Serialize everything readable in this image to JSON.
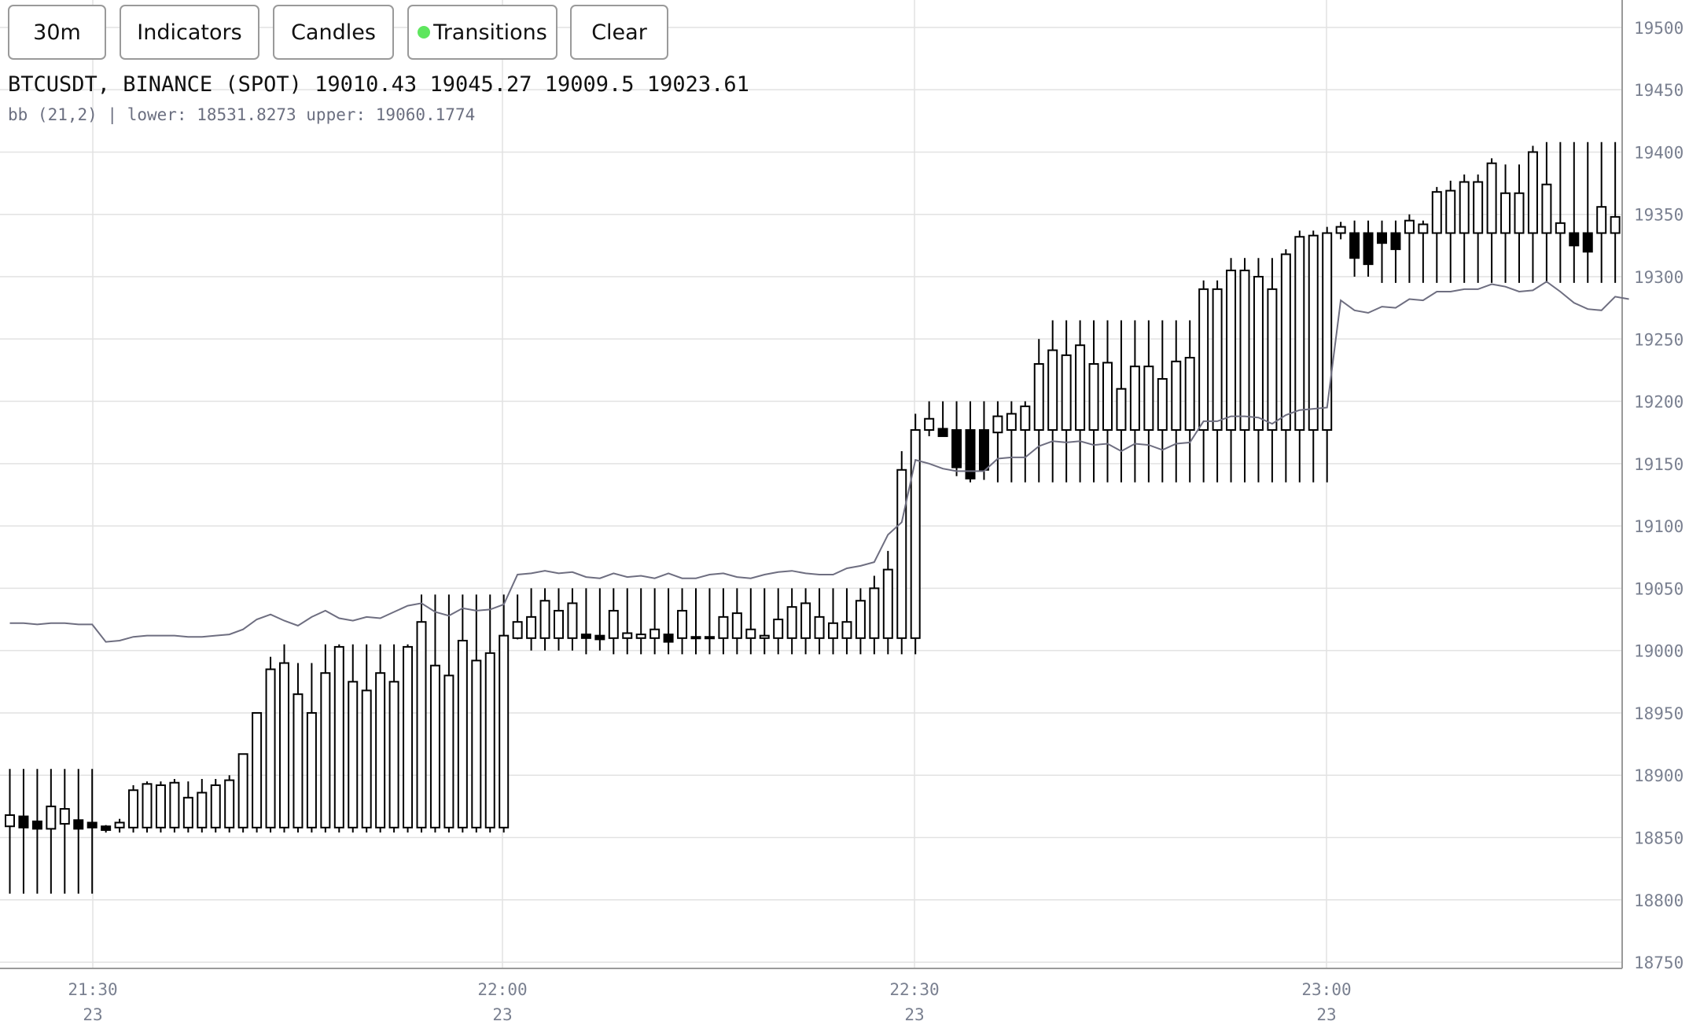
{
  "toolbar": {
    "interval_label": "30m",
    "indicators_label": "Indicators",
    "candles_label": "Candles",
    "transitions_label": "Transitions",
    "transitions_dot_color": "#5ee65e",
    "clear_label": "Clear"
  },
  "legend": {
    "symbol": "BTCUSDT, BINANCE (SPOT)",
    "open": "19010.43",
    "high": "19045.27",
    "low": "19009.5",
    "close": "19023.61",
    "indicator": "bb (21,2) | lower: 18531.8273 upper: 19060.1774"
  },
  "chart_data": {
    "type": "candlestick",
    "y_ticks": [
      "19500",
      "19450",
      "19400",
      "19350",
      "19300",
      "19250",
      "19200",
      "19150",
      "19100",
      "19050",
      "19000",
      "18950",
      "18900",
      "18850",
      "18800",
      "18750"
    ],
    "ylim": [
      18745,
      19522
    ],
    "x_ticks": [
      {
        "time": "21:30",
        "day": "23"
      },
      {
        "time": "22:00",
        "day": "23"
      },
      {
        "time": "22:30",
        "day": "23"
      },
      {
        "time": "23:00",
        "day": "23"
      }
    ],
    "grid": true,
    "colors": {
      "up": "#ffffff",
      "down": "#000000",
      "outline": "#000000",
      "line": "#6e6e80",
      "grid": "#e2e2e2"
    },
    "candles": [
      [
        18859,
        18905,
        18805,
        18868
      ],
      [
        18867,
        18905,
        18805,
        18858
      ],
      [
        18863,
        18905,
        18805,
        18857
      ],
      [
        18857,
        18905,
        18805,
        18875
      ],
      [
        18861,
        18905,
        18805,
        18873
      ],
      [
        18864,
        18905,
        18805,
        18857
      ],
      [
        18862,
        18905,
        18805,
        18858
      ],
      [
        18859,
        18860,
        18854,
        18856
      ],
      [
        18858,
        18865,
        18854,
        18862
      ],
      [
        18858,
        18892,
        18854,
        18888
      ],
      [
        18858,
        18895,
        18854,
        18893
      ],
      [
        18858,
        18895,
        18854,
        18892
      ],
      [
        18858,
        18897,
        18854,
        18894
      ],
      [
        18858,
        18895,
        18854,
        18882
      ],
      [
        18858,
        18897,
        18854,
        18886
      ],
      [
        18858,
        18897,
        18854,
        18892
      ],
      [
        18858,
        18900,
        18854,
        18896
      ],
      [
        18858,
        18917,
        18854,
        18917
      ],
      [
        18858,
        18950,
        18854,
        18950
      ],
      [
        18858,
        18995,
        18854,
        18985
      ],
      [
        18858,
        19005,
        18854,
        18990
      ],
      [
        18858,
        18990,
        18854,
        18965
      ],
      [
        18858,
        18990,
        18854,
        18950
      ],
      [
        18858,
        19005,
        18854,
        18982
      ],
      [
        18858,
        19005,
        18854,
        19003
      ],
      [
        18858,
        19005,
        18854,
        18975
      ],
      [
        18858,
        19005,
        18854,
        18968
      ],
      [
        18858,
        19005,
        18854,
        18982
      ],
      [
        18858,
        19005,
        18854,
        18975
      ],
      [
        18858,
        19005,
        18854,
        19003
      ],
      [
        18858,
        19045,
        18854,
        19023
      ],
      [
        18858,
        19045,
        18854,
        18988
      ],
      [
        18858,
        19045,
        18854,
        18980
      ],
      [
        18858,
        19045,
        18854,
        19008
      ],
      [
        18858,
        19045,
        18854,
        18992
      ],
      [
        18858,
        19045,
        18854,
        18998
      ],
      [
        18858,
        19045,
        18854,
        19012
      ],
      [
        19010,
        19045,
        19009,
        19023
      ],
      [
        19010,
        19050,
        19000,
        19027
      ],
      [
        19010,
        19050,
        19000,
        19040
      ],
      [
        19010,
        19050,
        19000,
        19032
      ],
      [
        19010,
        19050,
        19000,
        19038
      ],
      [
        19013,
        19050,
        18997,
        19010
      ],
      [
        19012,
        19050,
        19000,
        19009
      ],
      [
        19010,
        19050,
        18997,
        19032
      ],
      [
        19010,
        19050,
        18997,
        19014
      ],
      [
        19010,
        19050,
        18997,
        19013
      ],
      [
        19010,
        19050,
        18997,
        19017
      ],
      [
        19013,
        19050,
        18997,
        19007
      ],
      [
        19010,
        19050,
        18997,
        19032
      ],
      [
        19011,
        19050,
        18997,
        19010
      ],
      [
        19010,
        19050,
        18997,
        19011
      ],
      [
        19010,
        19050,
        18997,
        19027
      ],
      [
        19010,
        19050,
        18997,
        19030
      ],
      [
        19010,
        19050,
        18997,
        19017
      ],
      [
        19010,
        19050,
        18997,
        19012
      ],
      [
        19010,
        19050,
        18997,
        19025
      ],
      [
        19010,
        19050,
        18997,
        19035
      ],
      [
        19010,
        19050,
        18997,
        19038
      ],
      [
        19010,
        19050,
        18997,
        19027
      ],
      [
        19010,
        19050,
        18997,
        19022
      ],
      [
        19010,
        19050,
        18997,
        19023
      ],
      [
        19010,
        19050,
        18997,
        19040
      ],
      [
        19010,
        19060,
        18997,
        19050
      ],
      [
        19010,
        19080,
        18997,
        19065
      ],
      [
        19010,
        19160,
        18997,
        19145
      ],
      [
        19010,
        19190,
        18997,
        19177
      ],
      [
        19177,
        19200,
        19172,
        19186
      ],
      [
        19178,
        19200,
        19173,
        19172
      ],
      [
        19177,
        19200,
        19140,
        19147
      ],
      [
        19177,
        19200,
        19135,
        19138
      ],
      [
        19177,
        19200,
        19137,
        19145
      ],
      [
        19175,
        19200,
        19135,
        19188
      ],
      [
        19177,
        19200,
        19135,
        19190
      ],
      [
        19177,
        19200,
        19135,
        19196
      ],
      [
        19177,
        19250,
        19135,
        19230
      ],
      [
        19177,
        19265,
        19135,
        19241
      ],
      [
        19177,
        19265,
        19135,
        19237
      ],
      [
        19177,
        19265,
        19135,
        19245
      ],
      [
        19177,
        19265,
        19135,
        19230
      ],
      [
        19177,
        19265,
        19135,
        19231
      ],
      [
        19177,
        19265,
        19135,
        19210
      ],
      [
        19177,
        19265,
        19135,
        19228
      ],
      [
        19177,
        19265,
        19135,
        19228
      ],
      [
        19177,
        19265,
        19135,
        19218
      ],
      [
        19177,
        19265,
        19135,
        19232
      ],
      [
        19177,
        19265,
        19135,
        19235
      ],
      [
        19177,
        19297,
        19135,
        19290
      ],
      [
        19177,
        19297,
        19135,
        19290
      ],
      [
        19177,
        19315,
        19135,
        19305
      ],
      [
        19177,
        19315,
        19135,
        19305
      ],
      [
        19177,
        19315,
        19135,
        19300
      ],
      [
        19177,
        19315,
        19135,
        19290
      ],
      [
        19177,
        19322,
        19135,
        19318
      ],
      [
        19177,
        19337,
        19135,
        19332
      ],
      [
        19177,
        19337,
        19135,
        19333
      ],
      [
        19177,
        19340,
        19135,
        19335
      ],
      [
        19335,
        19344,
        19330,
        19340
      ],
      [
        19335,
        19345,
        19300,
        19315
      ],
      [
        19335,
        19345,
        19300,
        19310
      ],
      [
        19335,
        19345,
        19295,
        19327
      ],
      [
        19335,
        19345,
        19295,
        19322
      ],
      [
        19335,
        19350,
        19295,
        19345
      ],
      [
        19335,
        19345,
        19295,
        19342
      ],
      [
        19335,
        19372,
        19295,
        19368
      ],
      [
        19335,
        19377,
        19295,
        19369
      ],
      [
        19335,
        19382,
        19295,
        19376
      ],
      [
        19335,
        19382,
        19295,
        19376
      ],
      [
        19335,
        19395,
        19295,
        19391
      ],
      [
        19335,
        19390,
        19295,
        19367
      ],
      [
        19335,
        19390,
        19295,
        19367
      ],
      [
        19335,
        19405,
        19295,
        19400
      ],
      [
        19335,
        19408,
        19295,
        19374
      ],
      [
        19335,
        19408,
        19295,
        19343
      ],
      [
        19335,
        19408,
        19295,
        19325
      ],
      [
        19335,
        19408,
        19295,
        19320
      ],
      [
        19335,
        19408,
        19295,
        19356
      ],
      [
        19335,
        19408,
        19295,
        19348
      ]
    ],
    "bb_line": [
      19022,
      19022,
      19021,
      19022,
      19022,
      19021,
      19021,
      19007,
      19008,
      19011,
      19012,
      19012,
      19012,
      19011,
      19011,
      19012,
      19013,
      19017,
      19025,
      19029,
      19024,
      19020,
      19027,
      19032,
      19026,
      19024,
      19027,
      19026,
      19031,
      19036,
      19038,
      19031,
      19028,
      19034,
      19032,
      19033,
      19037,
      19061,
      19062,
      19064,
      19062,
      19063,
      19059,
      19058,
      19062,
      19059,
      19060,
      19058,
      19062,
      19058,
      19058,
      19061,
      19062,
      19059,
      19058,
      19061,
      19063,
      19064,
      19062,
      19061,
      19061,
      19066,
      19068,
      19071,
      19093,
      19103,
      19153,
      19150,
      19146,
      19144,
      19144,
      19144,
      19154,
      19155,
      19155,
      19164,
      19168,
      19167,
      19168,
      19165,
      19166,
      19160,
      19166,
      19165,
      19161,
      19166,
      19167,
      19184,
      19184,
      19188,
      19188,
      19187,
      19182,
      19189,
      19193,
      19194,
      19195,
      19281,
      19273,
      19271,
      19276,
      19275,
      19282,
      19281,
      19288,
      19288,
      19290,
      19290,
      19294,
      19292,
      19288,
      19289,
      19296,
      19288,
      19279,
      19274,
      19273,
      19284,
      19282
    ]
  }
}
